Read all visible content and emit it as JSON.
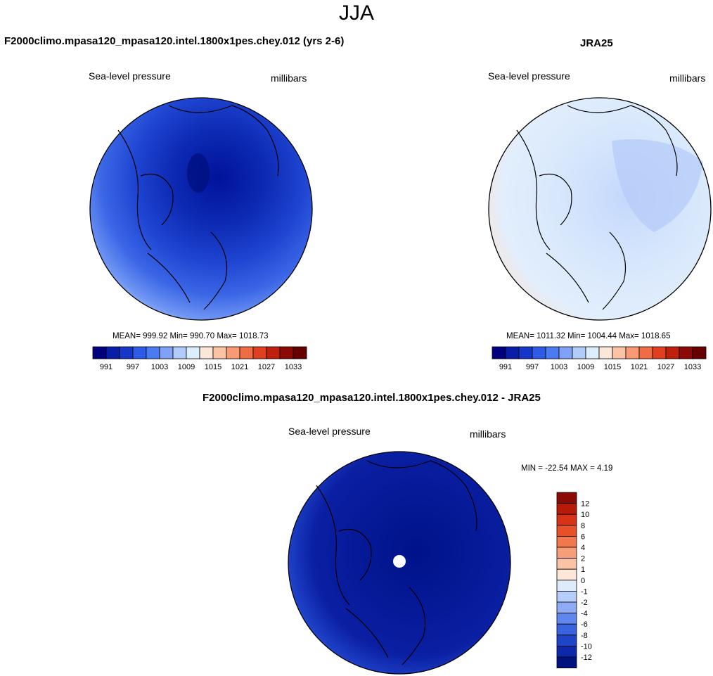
{
  "figure": {
    "season": "JJA"
  },
  "panels": {
    "model": {
      "title": "F2000climo.mpasa120_mpasa120.intel.1800x1pes.chey.012 (yrs 2-6)",
      "variable": "Sea-level pressure",
      "units": "millibars",
      "stats": "MEAN= 999.92  Min= 990.70  Max= 1018.73"
    },
    "obs": {
      "title": "JRA25",
      "variable": "Sea-level pressure",
      "units": "millibars",
      "stats": "MEAN= 1011.32  Min= 1004.44  Max= 1018.65"
    },
    "diff": {
      "title": "F2000climo.mpasa120_mpasa120.intel.1800x1pes.chey.012 - JRA25",
      "variable": "Sea-level pressure",
      "units": "millibars",
      "stats": "MIN = -22.54 MAX =   4.19"
    }
  },
  "colorbars": {
    "abs_ticks": [
      "991",
      "997",
      "1003",
      "1009",
      "1015",
      "1021",
      "1027",
      "1033"
    ],
    "abs_colors": [
      "#00007f",
      "#0a1da8",
      "#1437c8",
      "#2d5ae6",
      "#4a7bf2",
      "#7fa2f7",
      "#b1cbfa",
      "#dceefc",
      "#fbe6da",
      "#fcc3a5",
      "#f89a74",
      "#f06c44",
      "#e0401f",
      "#bf1f0d",
      "#8b0a05",
      "#660000"
    ],
    "diff_ticks": [
      "12",
      "10",
      "8",
      "6",
      "4",
      "2",
      "1",
      "0",
      "-1",
      "-2",
      "-4",
      "-6",
      "-8",
      "-10",
      "-12"
    ],
    "diff_colors": [
      "#8b0a05",
      "#b81a0a",
      "#d73316",
      "#e8502a",
      "#f1774d",
      "#f79d78",
      "#fbc3a6",
      "#fde7d9",
      "#deebfb",
      "#b6ccf9",
      "#8eacf6",
      "#5f87ee",
      "#3a63e0",
      "#1f44c8",
      "#0d28aa",
      "#00127f"
    ]
  }
}
